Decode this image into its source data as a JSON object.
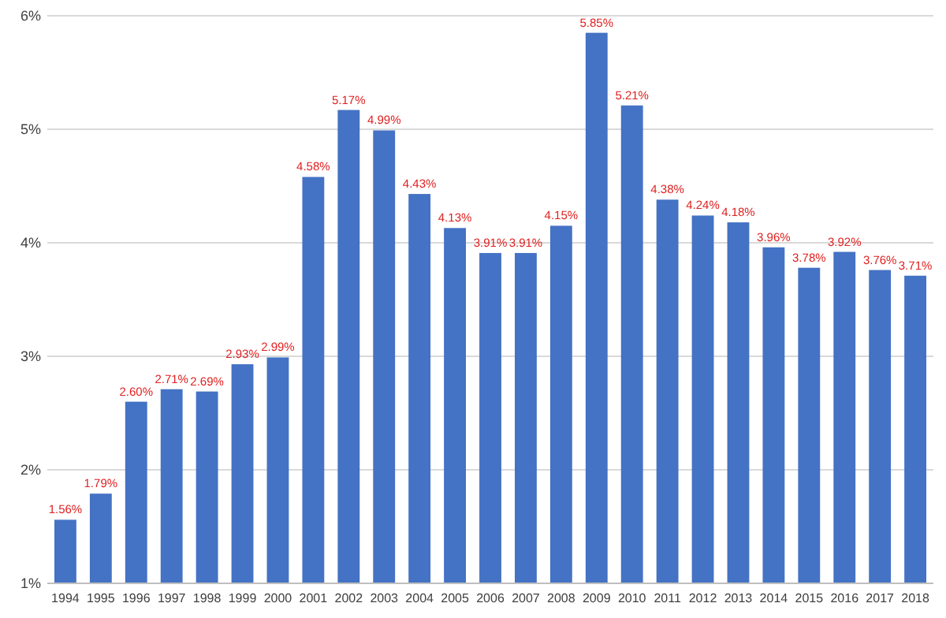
{
  "chart_data": {
    "type": "bar",
    "categories": [
      "1994",
      "1995",
      "1996",
      "1997",
      "1998",
      "1999",
      "2000",
      "2001",
      "2002",
      "2003",
      "2004",
      "2005",
      "2006",
      "2007",
      "2008",
      "2009",
      "2010",
      "2011",
      "2012",
      "2013",
      "2014",
      "2015",
      "2016",
      "2017",
      "2018"
    ],
    "values": [
      1.56,
      1.79,
      2.6,
      2.71,
      2.69,
      2.93,
      2.99,
      4.58,
      5.17,
      4.99,
      4.43,
      4.13,
      3.91,
      3.91,
      4.15,
      5.85,
      5.21,
      4.38,
      4.24,
      4.18,
      3.96,
      3.78,
      3.92,
      3.76,
      3.71
    ],
    "value_labels": [
      "1.56%",
      "1.79%",
      "2.60%",
      "2.71%",
      "2.69%",
      "2.93%",
      "2.99%",
      "4.58%",
      "5.17%",
      "4.99%",
      "4.43%",
      "4.13%",
      "3.91%",
      "3.91%",
      "4.15%",
      "5.85%",
      "5.21%",
      "4.38%",
      "4.24%",
      "4.18%",
      "3.96%",
      "3.78%",
      "3.92%",
      "3.76%",
      "3.71%"
    ],
    "color": "#4472c4",
    "ylim": [
      1,
      6
    ],
    "yticks": [
      {
        "value": 1,
        "label": "1%"
      },
      {
        "value": 2,
        "label": "2%"
      },
      {
        "value": 3,
        "label": "3%"
      },
      {
        "value": 4,
        "label": "4%"
      },
      {
        "value": 5,
        "label": "5%"
      },
      {
        "value": 6,
        "label": "6%"
      }
    ],
    "grid": "y"
  }
}
